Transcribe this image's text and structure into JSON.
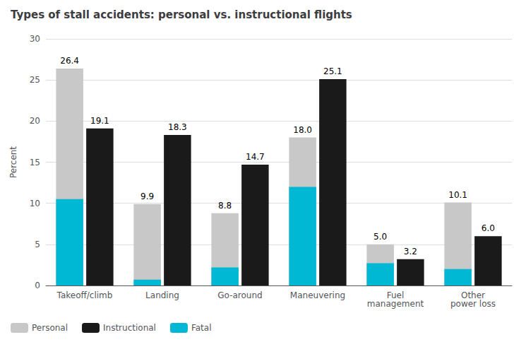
{
  "chart_data": {
    "type": "bar",
    "title": "Types of stall accidents: personal vs. instructional flights",
    "categories": [
      "Takeoff/climb",
      "Landing",
      "Go-around",
      "Maneuvering",
      "Fuel\nmanagement",
      "Other\npower loss"
    ],
    "series": [
      {
        "name": "Personal",
        "color": "#c8c8c8",
        "values": [
          26.4,
          9.9,
          8.8,
          18.0,
          5.0,
          10.1
        ],
        "value_labels": [
          "26.4",
          "9.9",
          "8.8",
          "18.0",
          "5.0",
          "10.1"
        ],
        "data_labels": true
      },
      {
        "name": "Instructional",
        "color": "#1a1a1a",
        "values": [
          19.1,
          18.3,
          14.7,
          25.1,
          3.2,
          6.0
        ],
        "value_labels": [
          "19.1",
          "18.3",
          "14.7",
          "25.1",
          "3.2",
          "6.0"
        ],
        "data_labels": true
      },
      {
        "name": "Fatal",
        "color": "#00b8d4",
        "values": [
          10.5,
          0.7,
          2.2,
          12.0,
          2.7,
          2.0
        ],
        "data_labels": false
      }
    ],
    "ylabel": "Percent",
    "ylim": [
      0,
      30
    ],
    "yticks": [
      0,
      5,
      10,
      15,
      20,
      25,
      30
    ],
    "grid": true,
    "legend": "lower left"
  }
}
